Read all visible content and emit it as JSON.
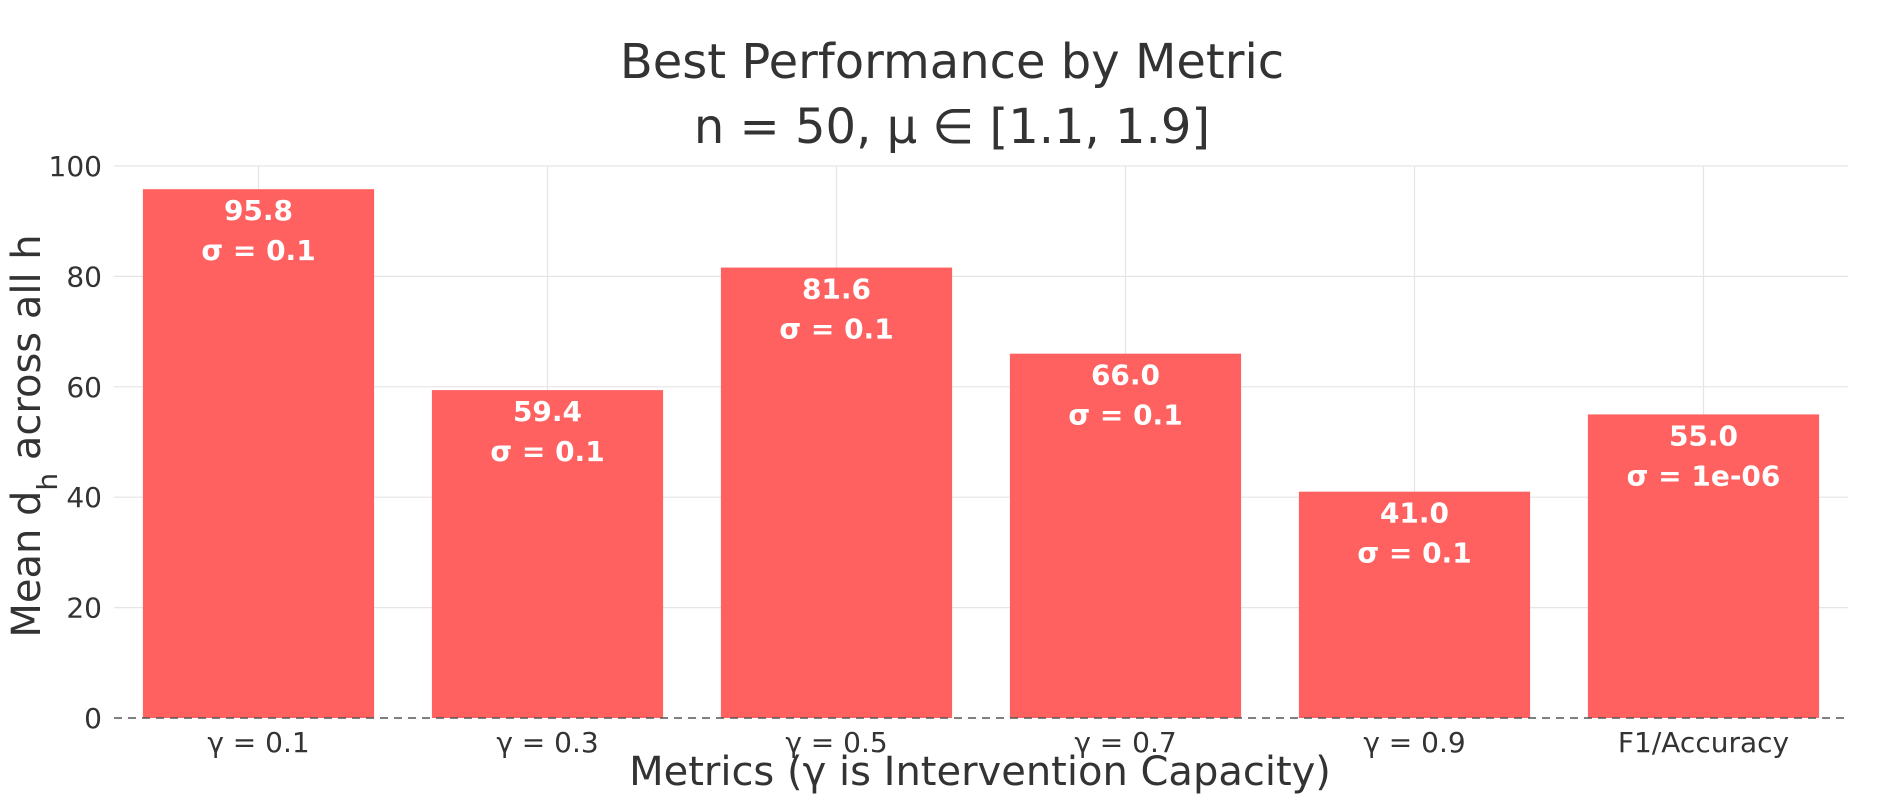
{
  "chart_data": {
    "type": "bar",
    "title": "Best Performance by Metric",
    "subtitle": "n = 50, μ ∈ [1.1, 1.9]",
    "xlabel": "Metrics (γ is Intervention Capacity)",
    "ylabel_main": "Mean d",
    "ylabel_sub": "h",
    "ylabel_rest": " across all h",
    "categories": [
      "γ = 0.1",
      "γ = 0.3",
      "γ = 0.5",
      "γ = 0.7",
      "γ = 0.9",
      "F1/Accuracy"
    ],
    "values": [
      95.8,
      59.4,
      81.6,
      66.0,
      41.0,
      55.0
    ],
    "value_labels": [
      "95.8",
      "59.4",
      "81.6",
      "66.0",
      "41.0",
      "55.0"
    ],
    "sigma_labels": [
      "σ = 0.1",
      "σ = 0.1",
      "σ = 0.1",
      "σ = 0.1",
      "σ = 0.1",
      "σ = 1e-06"
    ],
    "ylim": [
      0,
      100
    ],
    "yticks": [
      0,
      20,
      40,
      60,
      80,
      100
    ],
    "bar_color": "#ff6161",
    "grid": true,
    "zero_line": "dashed"
  }
}
